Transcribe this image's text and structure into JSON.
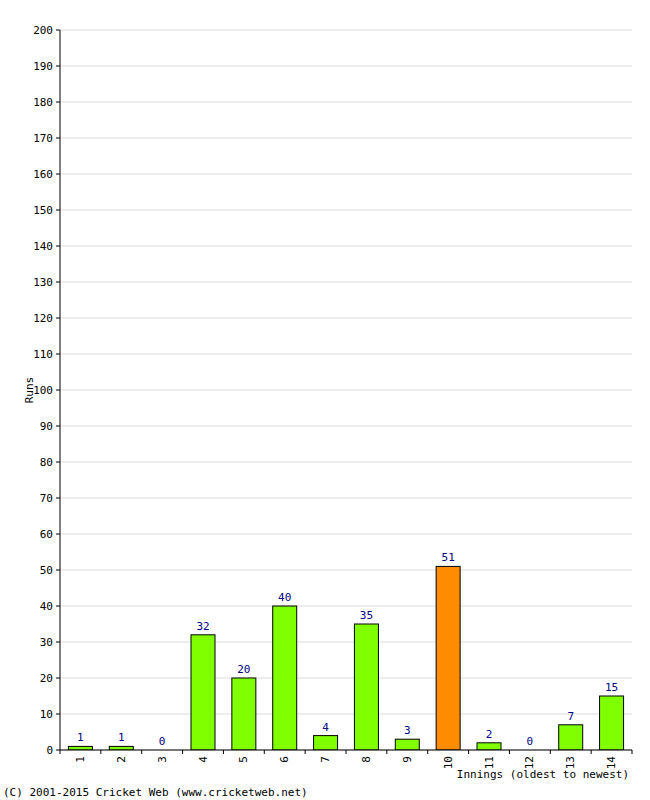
{
  "chart_data": {
    "type": "bar",
    "y_label": "Runs",
    "x_label": "Innings (oldest to newest)",
    "annotations": [
      "(C) 2001-2015 Cricket Web (www.cricketweb.net)"
    ],
    "categories": [
      "1",
      "2",
      "3",
      "4",
      "5",
      "6",
      "7",
      "8",
      "9",
      "10",
      "11",
      "12",
      "13",
      "14"
    ],
    "values": [
      1,
      1,
      0,
      32,
      20,
      40,
      4,
      35,
      3,
      51,
      2,
      0,
      7,
      15
    ],
    "colors": [
      "#80ff00",
      "#80ff00",
      "#80ff00",
      "#80ff00",
      "#80ff00",
      "#80ff00",
      "#80ff00",
      "#80ff00",
      "#80ff00",
      "#ff8c00",
      "#80ff00",
      "#80ff00",
      "#80ff00",
      "#80ff00"
    ],
    "ylim": [
      0,
      200
    ],
    "yticks": [
      0,
      10,
      20,
      30,
      40,
      50,
      60,
      70,
      80,
      90,
      100,
      110,
      120,
      130,
      140,
      150,
      160,
      170,
      180,
      190,
      200
    ],
    "grid": true,
    "data_labels": true
  }
}
